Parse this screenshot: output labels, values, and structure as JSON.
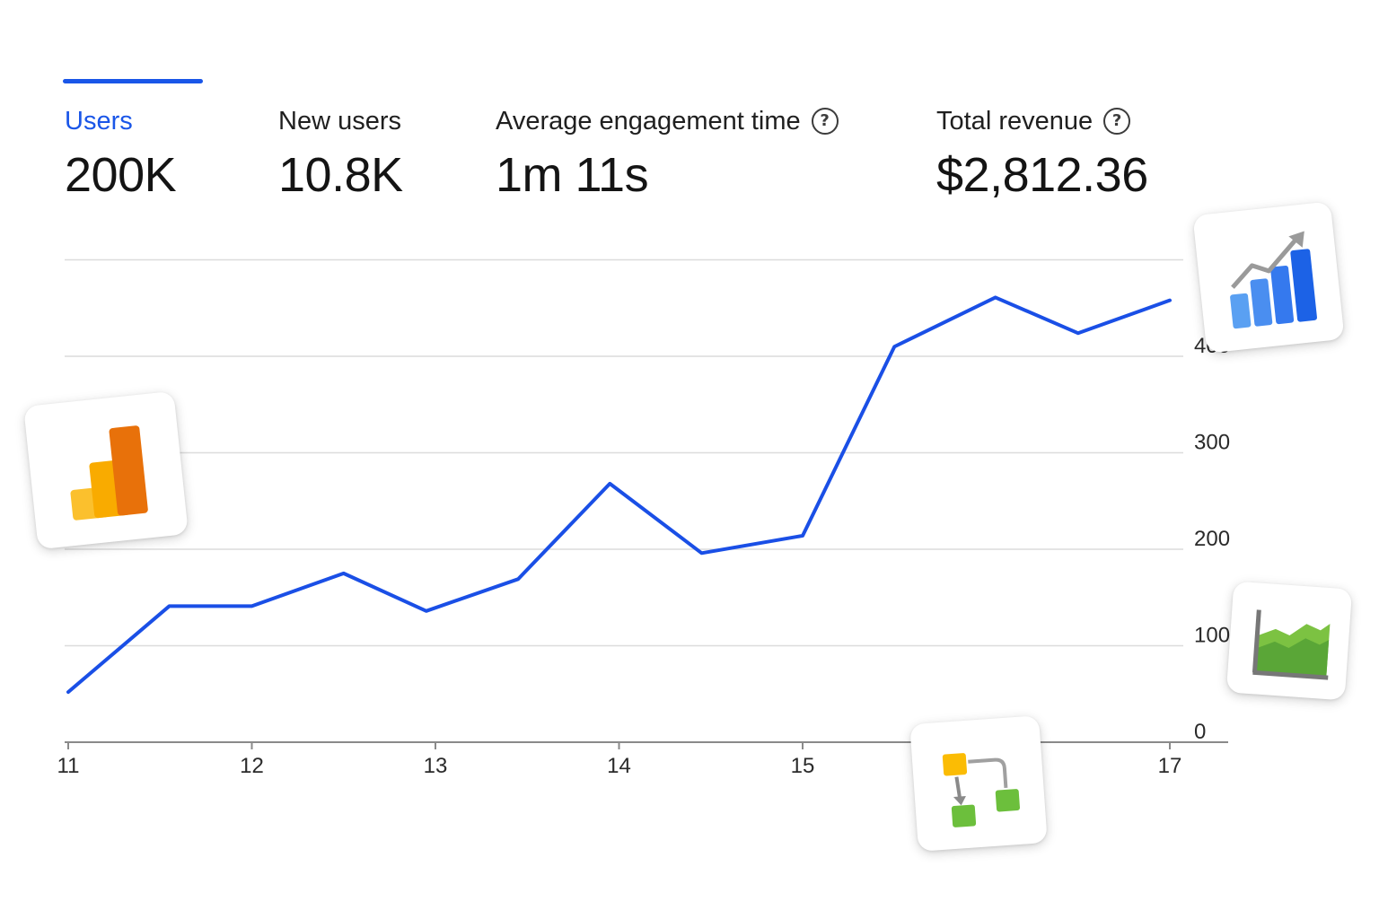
{
  "metrics": [
    {
      "label": "Users",
      "value": "200K",
      "active": true
    },
    {
      "label": "New users",
      "value": "10.8K",
      "active": false
    },
    {
      "label": "Average engagement time",
      "value": "1m 11s",
      "active": false,
      "help": "?"
    },
    {
      "label": "Total revenue",
      "value": "$2,812.36",
      "active": false,
      "help": "?"
    }
  ],
  "colors": {
    "accent": "#1a56e8",
    "line": "#1a4fe6",
    "grid": "#dcdcdc",
    "axis": "#8a8a8a"
  },
  "decorative_cards": [
    {
      "icon": "analytics-logo-icon"
    },
    {
      "icon": "trending-bars-icon"
    },
    {
      "icon": "area-chart-icon"
    },
    {
      "icon": "flow-diagram-icon"
    }
  ],
  "chart_data": {
    "type": "line",
    "x": [
      11,
      11.55,
      12,
      12.5,
      12.95,
      13.45,
      13.95,
      14.45,
      15,
      15.5,
      16.05,
      16.5,
      17
    ],
    "xticks": [
      "11",
      "12",
      "13",
      "14",
      "15",
      "17"
    ],
    "xtick_values": [
      11,
      12,
      13,
      14,
      15,
      17
    ],
    "series": [
      {
        "values": [
          52,
          141,
          141,
          175,
          136,
          169,
          268,
          196,
          214,
          410,
          461,
          424,
          458
        ]
      }
    ],
    "yticks": [
      "0",
      "100",
      "200",
      "300",
      "400"
    ],
    "ytick_values": [
      0,
      100,
      200,
      300,
      400
    ],
    "ylim": [
      0,
      500
    ],
    "grid": true,
    "yaxis_position": "right"
  }
}
